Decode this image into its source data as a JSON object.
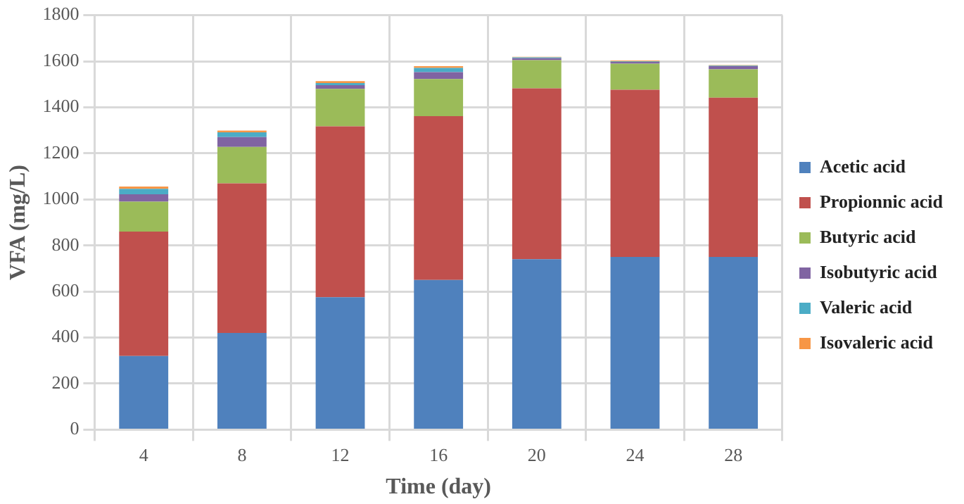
{
  "chart_data": {
    "type": "bar",
    "stacked": true,
    "xlabel": "Time (day)",
    "ylabel": "VFA (mg/L)",
    "categories": [
      "4",
      "8",
      "12",
      "16",
      "20",
      "24",
      "28"
    ],
    "series": [
      {
        "name": "Acetic acid",
        "color": "#4f81bd",
        "values": [
          320,
          420,
          575,
          650,
          740,
          750,
          750
        ]
      },
      {
        "name": "Propionnic acid",
        "color": "#c0504d",
        "values": [
          540,
          650,
          742,
          712,
          742,
          726,
          692
        ]
      },
      {
        "name": "Butyric acid",
        "color": "#9bbb59",
        "values": [
          130,
          158,
          163,
          161,
          123,
          113,
          123
        ]
      },
      {
        "name": "Isobutyric acid",
        "color": "#8064a2",
        "values": [
          32,
          43,
          16,
          30,
          8,
          8,
          14
        ]
      },
      {
        "name": "Valeric acid",
        "color": "#4bacc6",
        "values": [
          24,
          20,
          9,
          18,
          4,
          2,
          2
        ]
      },
      {
        "name": "Isovaleric acid",
        "color": "#f79646",
        "values": [
          10,
          8,
          9,
          8,
          2,
          4,
          2
        ]
      }
    ],
    "ylim": [
      0,
      1800
    ],
    "yticks": [
      0,
      200,
      400,
      600,
      800,
      1000,
      1200,
      1400,
      1600,
      1800
    ],
    "grid": true,
    "legend": "right"
  }
}
